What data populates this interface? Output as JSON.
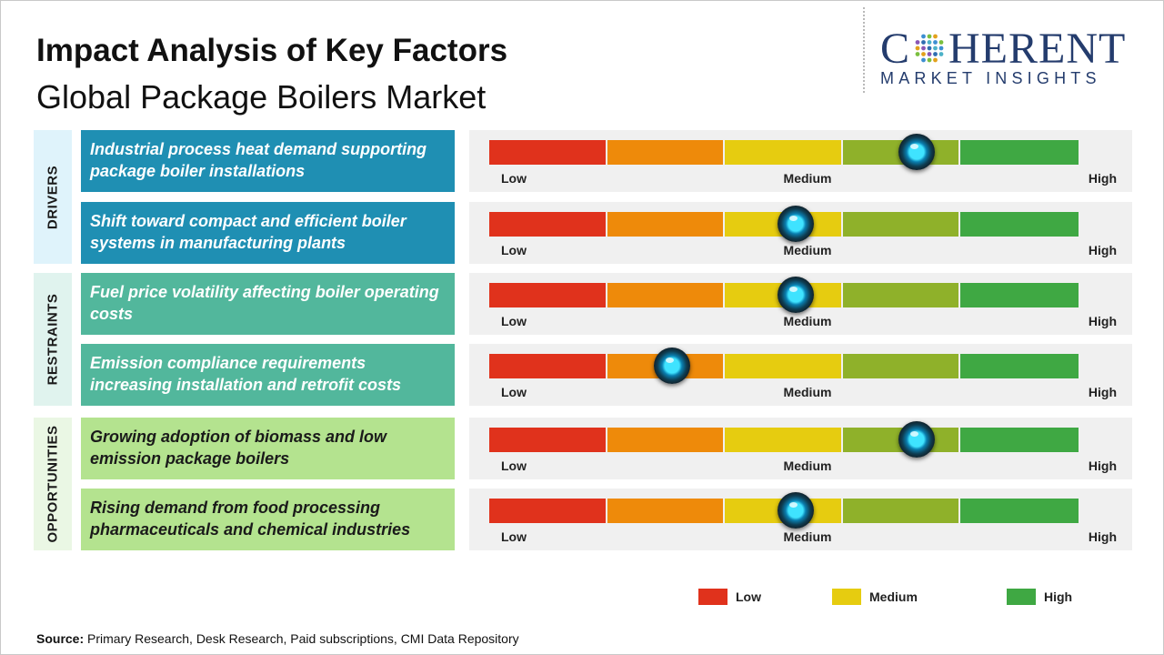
{
  "header": {
    "title": "Impact Analysis of Key Factors",
    "subtitle": "Global Package Boilers Market"
  },
  "logo": {
    "word_left": "C",
    "word_right": "HERENT",
    "tagline": "MARKET INSIGHTS",
    "color": "#243c6d"
  },
  "chart_data": {
    "type": "table",
    "scale": [
      "Low",
      "Medium",
      "High"
    ],
    "scale_colors": [
      "#e0321c",
      "#ee8a0a",
      "#e6cc10",
      "#8fb12a",
      "#3fa843"
    ],
    "categories": [
      {
        "name": "DRIVERS",
        "bg": "#dff3fb",
        "factor_bg": "#1f8fb3",
        "factor_color": "#ffffff"
      },
      {
        "name": "RESTRAINTS",
        "bg": "#e0f3ee",
        "factor_bg": "#52b79c",
        "factor_color": "#ffffff"
      },
      {
        "name": "OPPORTUNITIES",
        "bg": "#eaf7e4",
        "factor_bg": "#b4e38f",
        "factor_color": "#1a1a1a"
      }
    ],
    "factors": [
      {
        "category": "DRIVERS",
        "text": "Industrial process heat demand supporting package boiler installations",
        "impact": 0.725
      },
      {
        "category": "DRIVERS",
        "text": "Shift toward compact and efficient boiler systems in manufacturing plants",
        "impact": 0.52
      },
      {
        "category": "RESTRAINTS",
        "text": "Fuel price volatility affecting boiler operating costs",
        "impact": 0.52
      },
      {
        "category": "RESTRAINTS",
        "text": "Emission compliance requirements increasing installation and retrofit costs",
        "impact": 0.31
      },
      {
        "category": "OPPORTUNITIES",
        "text": "Growing adoption of biomass and low emission package boilers",
        "impact": 0.725
      },
      {
        "category": "OPPORTUNITIES",
        "text": "Rising demand from food processing pharmaceuticals and chemical industries",
        "impact": 0.52
      }
    ],
    "legend": [
      {
        "label": "Low",
        "color": "#e0321c"
      },
      {
        "label": "Medium",
        "color": "#e6cc10"
      },
      {
        "label": "High",
        "color": "#3fa843"
      }
    ]
  },
  "source": {
    "label": "Source:",
    "text": " Primary Research, Desk Research, Paid subscriptions, CMI Data Repository"
  }
}
